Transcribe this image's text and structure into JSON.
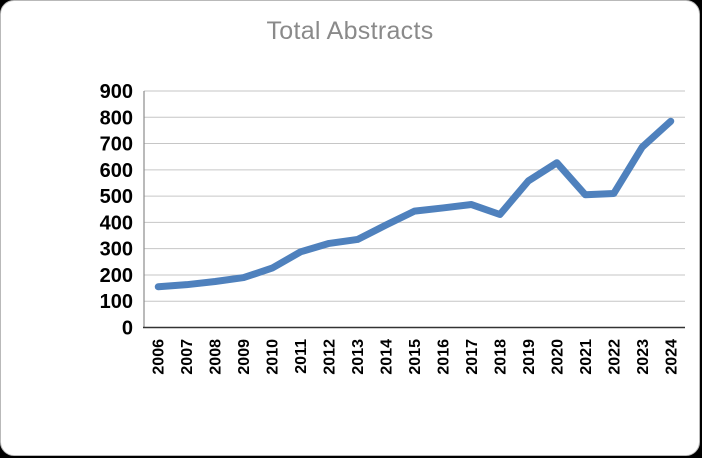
{
  "chart_data": {
    "type": "line",
    "title": "Total Abstracts",
    "xlabel": "",
    "ylabel": "",
    "categories": [
      "2006",
      "2007",
      "2008",
      "2009",
      "2010",
      "2011",
      "2012",
      "2013",
      "2014",
      "2015",
      "2016",
      "2017",
      "2018",
      "2019",
      "2020",
      "2021",
      "2022",
      "2023",
      "2024"
    ],
    "series": [
      {
        "name": "Total Abstracts",
        "values": [
          155,
          163,
          175,
          190,
          226,
          288,
          320,
          335,
          390,
          443,
          455,
          468,
          430,
          558,
          627,
          505,
          510,
          687,
          785
        ]
      }
    ],
    "ylim": [
      0,
      900
    ],
    "ytick_step": 100,
    "grid": "horizontal-only",
    "legend": "none",
    "colors": {
      "line": "#4f81bd",
      "title_text": "#8a8a8a",
      "tick_text": "#000000",
      "gridline": "#c6c6c6",
      "y_axis_line": "#8c8c8c",
      "x_axis_line": "#333333",
      "card_background": "#ffffff"
    }
  }
}
